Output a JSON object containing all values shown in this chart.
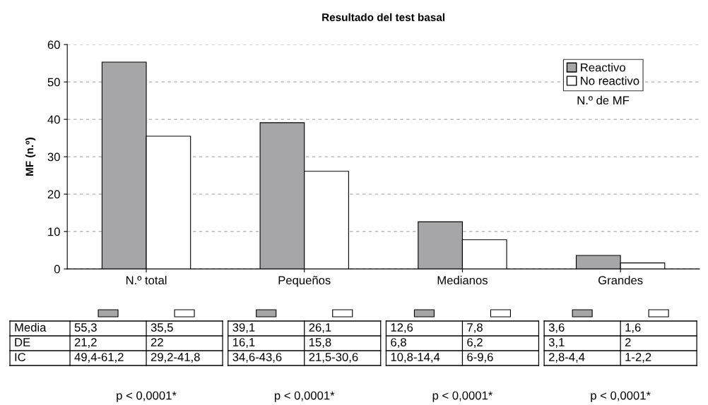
{
  "chart_data": {
    "type": "bar",
    "title": "Resultado del test basal",
    "ylabel": "MF (n.º)",
    "categories": [
      "N.º total",
      "Pequeños",
      "Medianos",
      "Grandes"
    ],
    "series": [
      {
        "name": "Reactivo",
        "color": "#a6a6a8",
        "values": [
          55.3,
          39.1,
          12.6,
          3.6
        ]
      },
      {
        "name": "No reactivo",
        "color": "#ffffff",
        "values": [
          35.5,
          26.1,
          7.8,
          1.6
        ]
      }
    ],
    "ylim": [
      0,
      60
    ],
    "yticks": [
      0,
      10,
      20,
      30,
      40,
      50,
      60
    ],
    "grid": "y",
    "legend": "top right",
    "annotations": [
      "N.º de MF",
      "Media",
      "DE",
      "IC",
      "55,3",
      "35,5",
      "21,2",
      "22",
      "49,4-61,2",
      "29,2-41,8",
      "39,1",
      "26,1",
      "16,1",
      "15,8",
      "34,6-43,6",
      "21,5-30,6",
      "12,6",
      "7,8",
      "6,8",
      "6,2",
      "10,8-14,4",
      "6-9,6",
      "3,6",
      "1,6",
      "3,1",
      "2",
      "2,8-4,4",
      "1-2,2",
      "p < 0,0001*",
      "p < 0,0001*",
      "p < 0,0001*",
      "p < 0,0001*"
    ]
  }
}
